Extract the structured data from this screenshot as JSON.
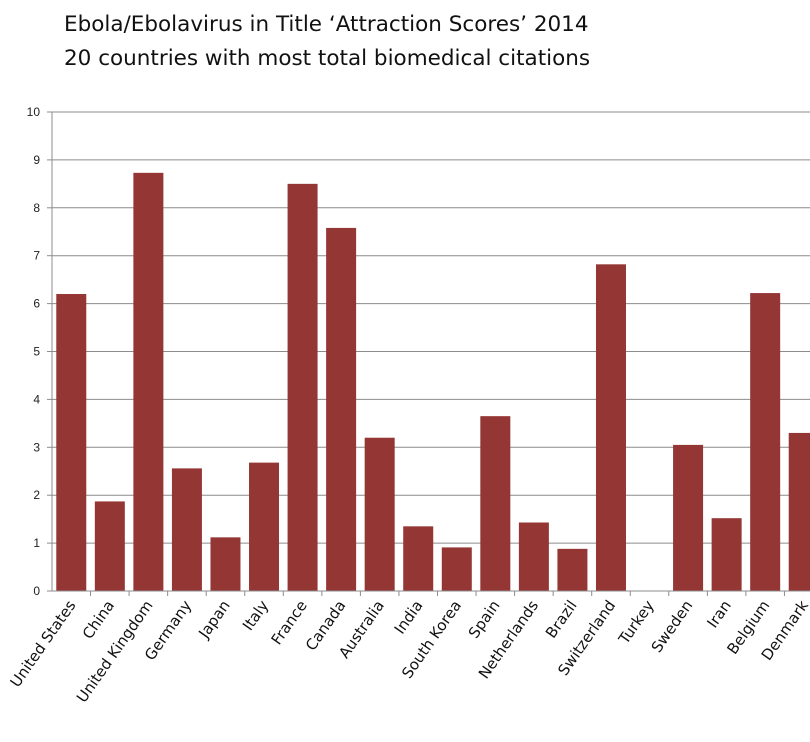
{
  "chart_data": {
    "type": "bar",
    "title": "Ebola/Ebolavirus in Title ‘Attraction Scores’ 2014",
    "subtitle": "20 countries with most total biomedical citations",
    "xlabel": "",
    "ylabel": "",
    "ylim": [
      0,
      10
    ],
    "yticks": [
      "0",
      "1",
      "2",
      "3",
      "4",
      "5",
      "6",
      "7",
      "8",
      "9",
      "10"
    ],
    "grid": true,
    "legend": "none",
    "bar_color": "#943634",
    "categories": [
      "United States",
      "China",
      "United Kingdom",
      "Germany",
      "Japan",
      "Italy",
      "France",
      "Canada",
      "Australia",
      "India",
      "South Korea",
      "Spain",
      "Netherlands",
      "Brazil",
      "Switzerland",
      "Turkey",
      "Sweden",
      "Iran",
      "Belgium",
      "Denmark"
    ],
    "values": [
      6.2,
      1.87,
      8.73,
      2.56,
      1.12,
      2.68,
      8.5,
      7.58,
      3.2,
      1.35,
      0.91,
      3.65,
      1.43,
      0.88,
      6.82,
      0,
      3.05,
      1.52,
      6.22,
      3.3
    ]
  }
}
